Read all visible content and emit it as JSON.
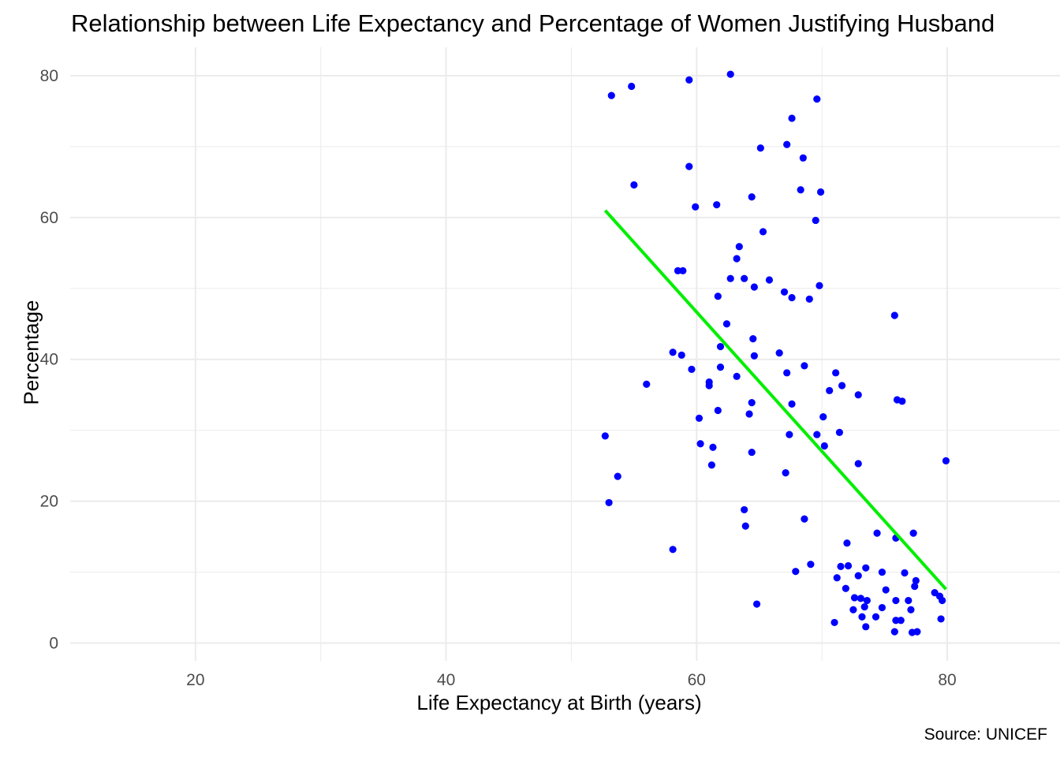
{
  "chart_data": {
    "type": "scatter",
    "title": "Relationship between Life Expectancy and Percentage of Women Justifying Husband",
    "xlabel": "Life Expectancy at Birth (years)",
    "ylabel": "Percentage",
    "caption": "Source: UNICEF",
    "xlim": [
      10,
      89
    ],
    "ylim": [
      -2.5,
      84
    ],
    "x_ticks": [
      20,
      40,
      60,
      80
    ],
    "x_tick_labels": [
      "20",
      "40",
      "60",
      "80"
    ],
    "y_ticks": [
      0,
      20,
      40,
      60,
      80
    ],
    "y_tick_labels": [
      "0",
      "20",
      "40",
      "60",
      "80"
    ],
    "grid": true,
    "legend": "none",
    "point_color": "#0000ff",
    "trend_color": "#00ee00",
    "gridline_color": "#ebebeb",
    "trend_line": {
      "x": [
        52.7,
        79.9
      ],
      "y": [
        61.0,
        7.6
      ]
    },
    "points": [
      {
        "x": 53.2,
        "y": 77.2
      },
      {
        "x": 54.8,
        "y": 78.5
      },
      {
        "x": 59.4,
        "y": 79.4
      },
      {
        "x": 62.7,
        "y": 80.2
      },
      {
        "x": 69.6,
        "y": 76.7
      },
      {
        "x": 67.6,
        "y": 74.0
      },
      {
        "x": 67.2,
        "y": 70.3
      },
      {
        "x": 65.1,
        "y": 69.8
      },
      {
        "x": 68.5,
        "y": 68.4
      },
      {
        "x": 59.4,
        "y": 67.2
      },
      {
        "x": 55.0,
        "y": 64.6
      },
      {
        "x": 68.3,
        "y": 63.9
      },
      {
        "x": 69.9,
        "y": 63.6
      },
      {
        "x": 64.4,
        "y": 62.9
      },
      {
        "x": 61.6,
        "y": 61.8
      },
      {
        "x": 59.9,
        "y": 61.5
      },
      {
        "x": 69.5,
        "y": 59.6
      },
      {
        "x": 65.3,
        "y": 58.0
      },
      {
        "x": 63.4,
        "y": 55.9
      },
      {
        "x": 63.2,
        "y": 54.2
      },
      {
        "x": 58.5,
        "y": 52.5
      },
      {
        "x": 58.9,
        "y": 52.5
      },
      {
        "x": 62.7,
        "y": 51.4
      },
      {
        "x": 63.8,
        "y": 51.4
      },
      {
        "x": 65.8,
        "y": 51.2
      },
      {
        "x": 64.6,
        "y": 50.2
      },
      {
        "x": 69.8,
        "y": 50.4
      },
      {
        "x": 67.0,
        "y": 49.5
      },
      {
        "x": 61.7,
        "y": 48.9
      },
      {
        "x": 67.6,
        "y": 48.7
      },
      {
        "x": 69.0,
        "y": 48.5
      },
      {
        "x": 75.8,
        "y": 46.2
      },
      {
        "x": 62.4,
        "y": 45.0
      },
      {
        "x": 64.5,
        "y": 42.9
      },
      {
        "x": 61.9,
        "y": 41.8
      },
      {
        "x": 58.1,
        "y": 41.0
      },
      {
        "x": 58.8,
        "y": 40.6
      },
      {
        "x": 64.6,
        "y": 40.5
      },
      {
        "x": 66.6,
        "y": 40.9
      },
      {
        "x": 61.9,
        "y": 38.9
      },
      {
        "x": 59.6,
        "y": 38.6
      },
      {
        "x": 68.6,
        "y": 39.1
      },
      {
        "x": 67.2,
        "y": 38.1
      },
      {
        "x": 71.1,
        "y": 38.1
      },
      {
        "x": 63.2,
        "y": 37.6
      },
      {
        "x": 61.0,
        "y": 36.8
      },
      {
        "x": 56.0,
        "y": 36.5
      },
      {
        "x": 61.0,
        "y": 36.3
      },
      {
        "x": 71.6,
        "y": 36.3
      },
      {
        "x": 70.6,
        "y": 35.6
      },
      {
        "x": 72.9,
        "y": 35.0
      },
      {
        "x": 76.0,
        "y": 34.3
      },
      {
        "x": 76.4,
        "y": 34.1
      },
      {
        "x": 64.4,
        "y": 33.9
      },
      {
        "x": 67.6,
        "y": 33.7
      },
      {
        "x": 61.7,
        "y": 32.8
      },
      {
        "x": 64.2,
        "y": 32.3
      },
      {
        "x": 60.2,
        "y": 31.7
      },
      {
        "x": 70.1,
        "y": 31.9
      },
      {
        "x": 71.4,
        "y": 29.7
      },
      {
        "x": 52.7,
        "y": 29.2
      },
      {
        "x": 67.4,
        "y": 29.4
      },
      {
        "x": 69.6,
        "y": 29.4
      },
      {
        "x": 60.3,
        "y": 28.1
      },
      {
        "x": 61.3,
        "y": 27.6
      },
      {
        "x": 70.2,
        "y": 27.8
      },
      {
        "x": 64.4,
        "y": 26.9
      },
      {
        "x": 79.9,
        "y": 25.7
      },
      {
        "x": 72.9,
        "y": 25.3
      },
      {
        "x": 61.2,
        "y": 25.1
      },
      {
        "x": 67.1,
        "y": 24.0
      },
      {
        "x": 53.7,
        "y": 23.5
      },
      {
        "x": 53.0,
        "y": 19.8
      },
      {
        "x": 63.8,
        "y": 18.8
      },
      {
        "x": 68.6,
        "y": 17.5
      },
      {
        "x": 63.9,
        "y": 16.5
      },
      {
        "x": 74.4,
        "y": 15.5
      },
      {
        "x": 77.3,
        "y": 15.5
      },
      {
        "x": 75.9,
        "y": 14.8
      },
      {
        "x": 72.0,
        "y": 14.1
      },
      {
        "x": 58.1,
        "y": 13.2
      },
      {
        "x": 69.1,
        "y": 11.1
      },
      {
        "x": 71.5,
        "y": 10.8
      },
      {
        "x": 72.1,
        "y": 10.9
      },
      {
        "x": 73.5,
        "y": 10.6
      },
      {
        "x": 67.9,
        "y": 10.1
      },
      {
        "x": 74.8,
        "y": 10.0
      },
      {
        "x": 76.6,
        "y": 9.9
      },
      {
        "x": 72.9,
        "y": 9.5
      },
      {
        "x": 71.2,
        "y": 9.2
      },
      {
        "x": 77.5,
        "y": 8.8
      },
      {
        "x": 77.4,
        "y": 8.0
      },
      {
        "x": 71.9,
        "y": 7.7
      },
      {
        "x": 75.1,
        "y": 7.5
      },
      {
        "x": 79.0,
        "y": 7.1
      },
      {
        "x": 79.4,
        "y": 6.6
      },
      {
        "x": 72.6,
        "y": 6.4
      },
      {
        "x": 73.1,
        "y": 6.3
      },
      {
        "x": 73.6,
        "y": 6.0
      },
      {
        "x": 75.9,
        "y": 6.0
      },
      {
        "x": 76.9,
        "y": 6.0
      },
      {
        "x": 79.6,
        "y": 6.0
      },
      {
        "x": 64.8,
        "y": 5.5
      },
      {
        "x": 73.4,
        "y": 5.1
      },
      {
        "x": 74.8,
        "y": 5.0
      },
      {
        "x": 72.5,
        "y": 4.7
      },
      {
        "x": 77.1,
        "y": 4.7
      },
      {
        "x": 73.2,
        "y": 3.7
      },
      {
        "x": 74.3,
        "y": 3.7
      },
      {
        "x": 79.5,
        "y": 3.4
      },
      {
        "x": 75.9,
        "y": 3.2
      },
      {
        "x": 76.3,
        "y": 3.2
      },
      {
        "x": 71.0,
        "y": 2.9
      },
      {
        "x": 73.5,
        "y": 2.3
      },
      {
        "x": 75.8,
        "y": 1.6
      },
      {
        "x": 77.2,
        "y": 1.5
      },
      {
        "x": 77.6,
        "y": 1.6
      }
    ]
  }
}
